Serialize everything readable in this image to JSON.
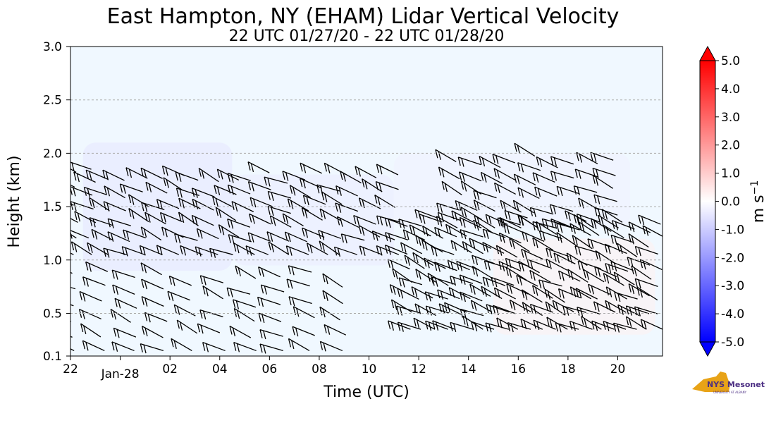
{
  "chart_data": {
    "type": "heatmap",
    "title": "East Hampton, NY (EHAM) Lidar Vertical Velocity",
    "subtitle": "22 UTC 01/27/20 - 22 UTC 01/28/20",
    "xlabel": "Time (UTC)",
    "ylabel": "Height (km)",
    "x_ticks": [
      "22",
      "Jan-28",
      "02",
      "04",
      "06",
      "08",
      "10",
      "12",
      "14",
      "16",
      "18",
      "20"
    ],
    "x_tick_hours": [
      -2,
      0,
      2,
      4,
      6,
      8,
      10,
      12,
      14,
      16,
      18,
      20
    ],
    "xlim": [
      -2,
      21.8
    ],
    "y_ticks": [
      "0.1",
      "0.5",
      "1.0",
      "1.5",
      "2.0",
      "2.5",
      "3.0"
    ],
    "y_tick_values": [
      0.1,
      0.5,
      1.0,
      1.5,
      2.0,
      2.5,
      3.0
    ],
    "ylim": [
      0.1,
      3.0
    ],
    "grid": "horizontal dashed",
    "colorbar": {
      "label": "m s",
      "label_superscript": "−1",
      "min": -5.0,
      "max": 5.0,
      "extend": "both",
      "tick_labels": [
        "5.0",
        "4.0",
        "3.0",
        "2.0",
        "1.0",
        "0.0",
        "-1.0",
        "-2.0",
        "-3.0",
        "-4.0",
        "-5.0"
      ],
      "tick_values": [
        5,
        4,
        3,
        2,
        1,
        0,
        -1,
        -2,
        -3,
        -4,
        -5
      ],
      "colors": {
        "positive": "#ff0000",
        "neutral": "#ffffff",
        "negative": "#0000ff"
      }
    },
    "background_value_color": "#f0f8ff",
    "layers": [
      {
        "name": "weak downward motion",
        "hours": [
          -1.5,
          4.5
        ],
        "height": [
          0.9,
          2.1
        ],
        "value": -0.5
      },
      {
        "name": "weak downward motion",
        "hours": [
          4.5,
          11.0
        ],
        "height": [
          0.95,
          1.8
        ],
        "value": -0.4
      },
      {
        "name": "weak downward motion",
        "hours": [
          11.0,
          20.5
        ],
        "height": [
          1.3,
          2.0
        ],
        "value": -0.3
      },
      {
        "name": "weak upward motion",
        "hours": [
          15.0,
          21.5
        ],
        "height": [
          0.3,
          1.2
        ],
        "value": 0.3
      }
    ]
  },
  "logo": {
    "text": "NYS Mesonet",
    "sub": "UNIVERSITY AT ALBANY",
    "color": "#e8a317"
  }
}
